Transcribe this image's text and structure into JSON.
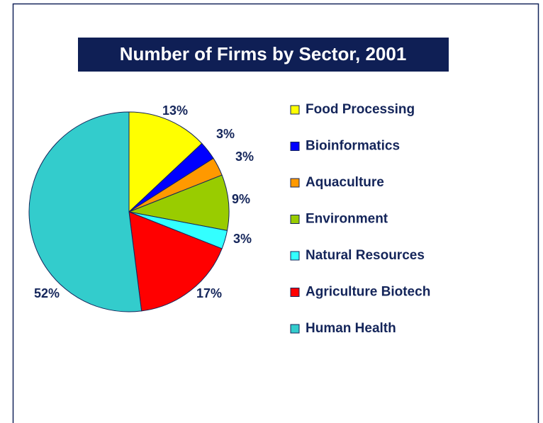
{
  "chart_data": {
    "type": "pie",
    "title": "Number of Firms by Sector, 2001",
    "categories": [
      "Food Processing",
      "Bioinformatics",
      "Aquaculture",
      "Environment",
      "Natural Resources",
      "Agriculture Biotech",
      "Human Health"
    ],
    "values": [
      13,
      3,
      3,
      9,
      3,
      17,
      52
    ],
    "value_labels": [
      "13%",
      "3%",
      "3%",
      "9%",
      "3%",
      "17%",
      "52%"
    ],
    "colors": [
      "#ffff00",
      "#0000ff",
      "#ff9900",
      "#99cc00",
      "#33ffff",
      "#ff0000",
      "#33cccc"
    ],
    "legend": "right"
  }
}
